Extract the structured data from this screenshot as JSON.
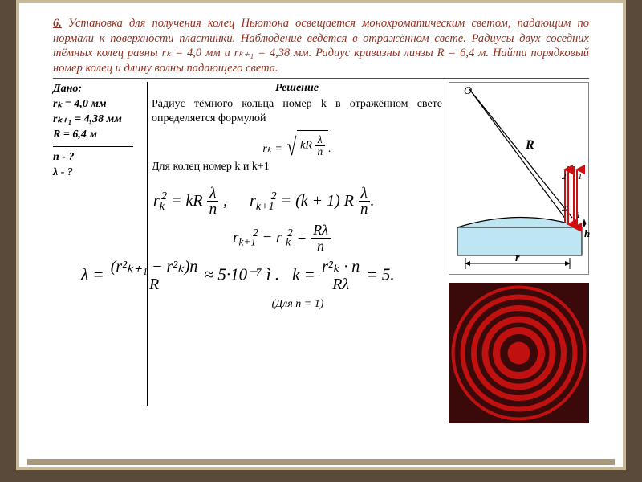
{
  "problem": {
    "number": "6.",
    "text_p1": "Установка для получения колец Ньютона освещается монохроматическим светом, падающим по нормали к поверхности пластинки. Наблюдение ведется в отражённом свете. Радиусы двух соседних тёмных колец равны ",
    "rk_eq": "rₖ = 4,0 мм",
    "text_p2": " и ",
    "rk1_eq": "rₖ₊₁ = 4,38 мм.",
    "text_p3": "  Радиус кривизны линзы ",
    "R_eq": "R = 6,4 м.",
    "text_p4": "  Найти порядковый номер колец и длину волны падающего света."
  },
  "given": {
    "title": "Дано:",
    "l1": "rₖ = 4,0 мм",
    "l2": "rₖ₊₁ = 4,38 мм",
    "l3": "R = 6,4 м",
    "q1": "n - ?",
    "q2": "λ - ?"
  },
  "solution": {
    "title": "Решение",
    "p1": "Радиус тёмного кольца номер k в отражённом свете определяется формулой",
    "p2": "Для колец номер k и k+1"
  },
  "formulas": {
    "f1_lhs": "rₖ =",
    "f1_inner": "kR",
    "f1_frac_top": "λ",
    "f1_frac_bot": "n",
    "f2a": "r² = kR",
    "f2b": "r²ₖ₊₁ = (k + 1) R",
    "f3": "r²ₖ₊₁ − r²ₖ =",
    "f3_top": "Rλ",
    "f3_bot": "n",
    "f4_lhs": "λ =",
    "f4_top": "(r²ₖ₊₁ − r²ₖ)n",
    "f4_bot": "R",
    "f4_rhs": "≈ 5·10⁻⁷ ì .",
    "f5_lhs": "k =",
    "f5_top": "r²ₖ · n",
    "f5_bot": "Rλ",
    "f5_rhs": "= 5.",
    "note": "(Для n = 1)"
  },
  "diagram": {
    "labels": {
      "O": "O",
      "R": "R",
      "r": "r",
      "h": "h",
      "one": "1",
      "two": "2"
    },
    "colors": {
      "lens_fill": "#bde6f2",
      "plate_fill": "#bde6f2",
      "ray": "#d01010",
      "line": "#000000"
    }
  },
  "rings": {
    "bg": "#3a0a0a",
    "color": "#c01010",
    "radii": [
      14,
      28,
      42,
      56,
      70,
      82
    ],
    "stroke_widths": [
      14,
      9,
      8,
      7,
      6,
      4
    ]
  }
}
